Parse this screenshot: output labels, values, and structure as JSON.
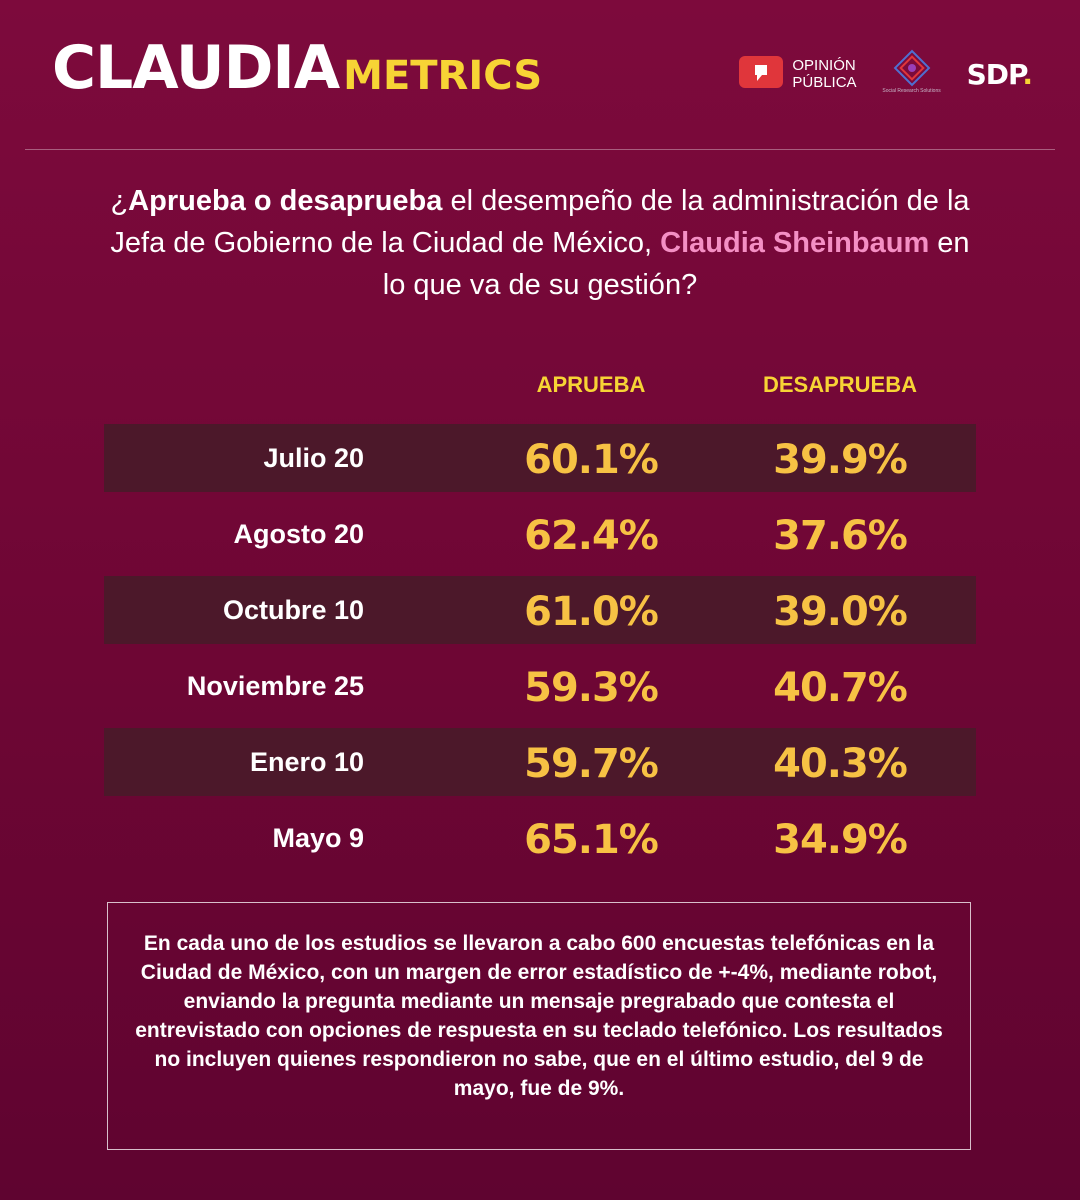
{
  "header": {
    "brand_part1": "CLAUDIA",
    "brand_part2": "METRICS",
    "logos": {
      "opinion_line1": "OPINIÓN",
      "opinion_line2": "PÚBLICA",
      "srs_caption": "Social Research Solutions",
      "sdp": "SDP",
      "sdp_dot": "."
    }
  },
  "question": {
    "part1": "¿",
    "part2_bold": "Aprueba o desaprueba",
    "part3": " el desempeño de la administración de la Jefa de Gobierno de la Ciudad de México, ",
    "part4_name": "Claudia Sheinbaum",
    "part5": " en lo que va de su gestión?"
  },
  "colors": {
    "background": "#7d0a3c",
    "row_shade": "#4c182a",
    "accent_yellow": "#f7d435",
    "value_yellow": "#f7c244",
    "name_pink": "#f48fc4"
  },
  "chart_data": {
    "type": "table",
    "columns": [
      "APRUEBA",
      "DESAPRUEBA"
    ],
    "rows": [
      {
        "label": "Julio 20",
        "aprueba": "60.1%",
        "desaprueba": "39.9%"
      },
      {
        "label": "Agosto 20",
        "aprueba": "62.4%",
        "desaprueba": "37.6%"
      },
      {
        "label": "Octubre 10",
        "aprueba": "61.0%",
        "desaprueba": "39.0%"
      },
      {
        "label": "Noviembre 25",
        "aprueba": "59.3%",
        "desaprueba": "40.7%"
      },
      {
        "label": "Enero 10",
        "aprueba": "59.7%",
        "desaprueba": "40.3%"
      },
      {
        "label": "Mayo 9",
        "aprueba": "65.1%",
        "desaprueba": "34.9%"
      }
    ]
  },
  "note": "En cada uno de los estudios se llevaron a cabo 600 encuestas telefónicas en la Ciudad de México, con un margen de error estadístico de +-4%, mediante robot, enviando la pregunta mediante un mensaje pregrabado que contesta el entrevistado con opciones de respuesta en su teclado telefónico. Los resultados no incluyen quienes respondieron no sabe, que en el último estudio, del 9 de mayo, fue de 9%."
}
